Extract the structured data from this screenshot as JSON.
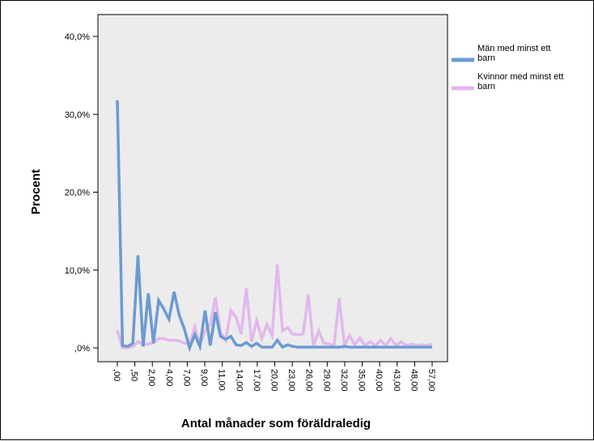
{
  "chart_data": {
    "type": "line",
    "xlabel": "Antal månader som föräldraledig",
    "ylabel": "Procent",
    "ylim": [
      0,
      40
    ],
    "y_ticks": [
      "40,0%",
      "30,0%",
      "20,0%",
      "10,0%",
      ",0%"
    ],
    "y_tick_values": [
      40,
      30,
      20,
      10,
      0
    ],
    "grid": false,
    "legend_position": "right",
    "x_tick_labels": [
      ",00",
      ",50",
      "2,00",
      "4,00",
      "7,00",
      "9,00",
      "11,00",
      "14,00",
      "17,00",
      "20,00",
      "23,00",
      "26,00",
      "29,00",
      "32,00",
      "35,00",
      "40,00",
      "43,00",
      "48,00",
      "57,00"
    ],
    "series": [
      {
        "name": "Män med minst ett barn",
        "color": "#6b9bd1",
        "values": [
          31.8,
          0.3,
          0.2,
          0.6,
          11.9,
          0.2,
          7.0,
          0.6,
          6.1,
          5.0,
          3.7,
          7.2,
          4.2,
          2.4,
          0.0,
          1.7,
          0.2,
          4.8,
          0.3,
          4.6,
          1.5,
          1.1,
          1.5,
          0.4,
          0.3,
          0.7,
          0.2,
          0.6,
          0.1,
          0.1,
          0.1,
          1.0,
          0.1,
          0.4,
          0.2,
          0.1,
          0.1,
          0.1,
          0.1,
          0.1,
          0.1,
          0.1,
          0.1,
          0.1,
          0.2,
          0.1,
          0.1,
          0.1,
          0.1,
          0.1,
          0.1,
          0.1,
          0.1,
          0.1,
          0.1,
          0.1,
          0.1,
          0.1,
          0.1,
          0.1,
          0.1,
          0.1
        ]
      },
      {
        "name": "Kvinnor med minst ett barn",
        "color": "#e2b8ec",
        "values": [
          2.3,
          0.0,
          0.0,
          0.2,
          0.8,
          0.4,
          0.5,
          0.7,
          1.2,
          1.2,
          1.0,
          1.0,
          0.9,
          0.6,
          0.5,
          2.7,
          0.4,
          2.2,
          3.0,
          6.5,
          2.0,
          1.0,
          4.8,
          3.9,
          1.8,
          7.7,
          0.8,
          3.5,
          1.2,
          3.0,
          1.6,
          10.7,
          2.2,
          2.6,
          1.8,
          1.7,
          1.8,
          6.9,
          0.2,
          2.2,
          0.6,
          0.5,
          0.3,
          6.4,
          0.3,
          1.6,
          0.4,
          1.3,
          0.3,
          0.8,
          0.3,
          1.0,
          0.3,
          1.2,
          0.3,
          0.8,
          0.3,
          0.5,
          0.3,
          0.4,
          0.3,
          0.5
        ]
      }
    ]
  }
}
